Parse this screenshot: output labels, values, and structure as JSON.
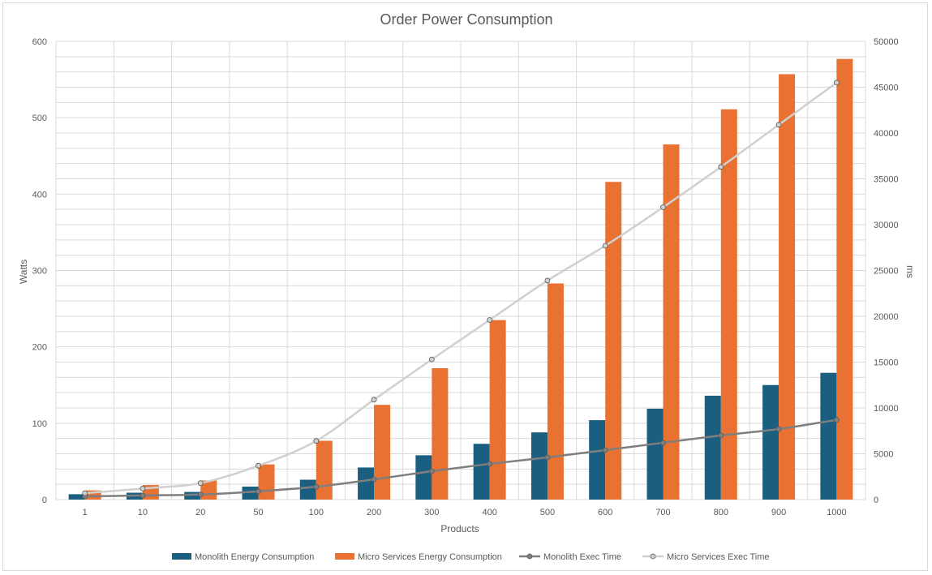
{
  "chart_data": {
    "type": "bar",
    "title": "Order Power Consumption",
    "xlabel": "Products",
    "ylabel": "Watts",
    "y2label": "ms",
    "categories": [
      "1",
      "10",
      "20",
      "50",
      "100",
      "200",
      "300",
      "400",
      "500",
      "600",
      "700",
      "800",
      "900",
      "1000"
    ],
    "ylim": [
      0,
      600
    ],
    "yticks": [
      0,
      100,
      200,
      300,
      400,
      500,
      600
    ],
    "y2lim": [
      0,
      50000
    ],
    "y2ticks": [
      0,
      5000,
      10000,
      15000,
      20000,
      25000,
      30000,
      35000,
      40000,
      45000,
      50000
    ],
    "grid": true,
    "legend_position": "bottom",
    "bar_series": [
      {
        "name": "Monolith Energy Consumption",
        "color": "#1a5e80",
        "axis": "left",
        "values": [
          7,
          9,
          10,
          17,
          26,
          42,
          58,
          73,
          88,
          104,
          119,
          136,
          150,
          166
        ]
      },
      {
        "name": "Micro Services Energy Consumption",
        "color": "#e97132",
        "axis": "left",
        "values": [
          12,
          19,
          25,
          46,
          77,
          124,
          172,
          235,
          283,
          416,
          465,
          511,
          557,
          577
        ]
      }
    ],
    "line_series": [
      {
        "name": "Monolith Exec Time",
        "color": "#7f7f7f",
        "axis": "right",
        "values": [
          350,
          450,
          550,
          900,
          1400,
          2200,
          3100,
          3900,
          4600,
          5400,
          6200,
          7000,
          7700,
          8700
        ]
      },
      {
        "name": "Micro Services Exec Time",
        "color": "#d0d0d0",
        "axis": "right",
        "values": [
          700,
          1200,
          1800,
          3700,
          6400,
          10900,
          15300,
          19600,
          23900,
          27700,
          31900,
          36300,
          40900,
          45500
        ]
      }
    ]
  }
}
